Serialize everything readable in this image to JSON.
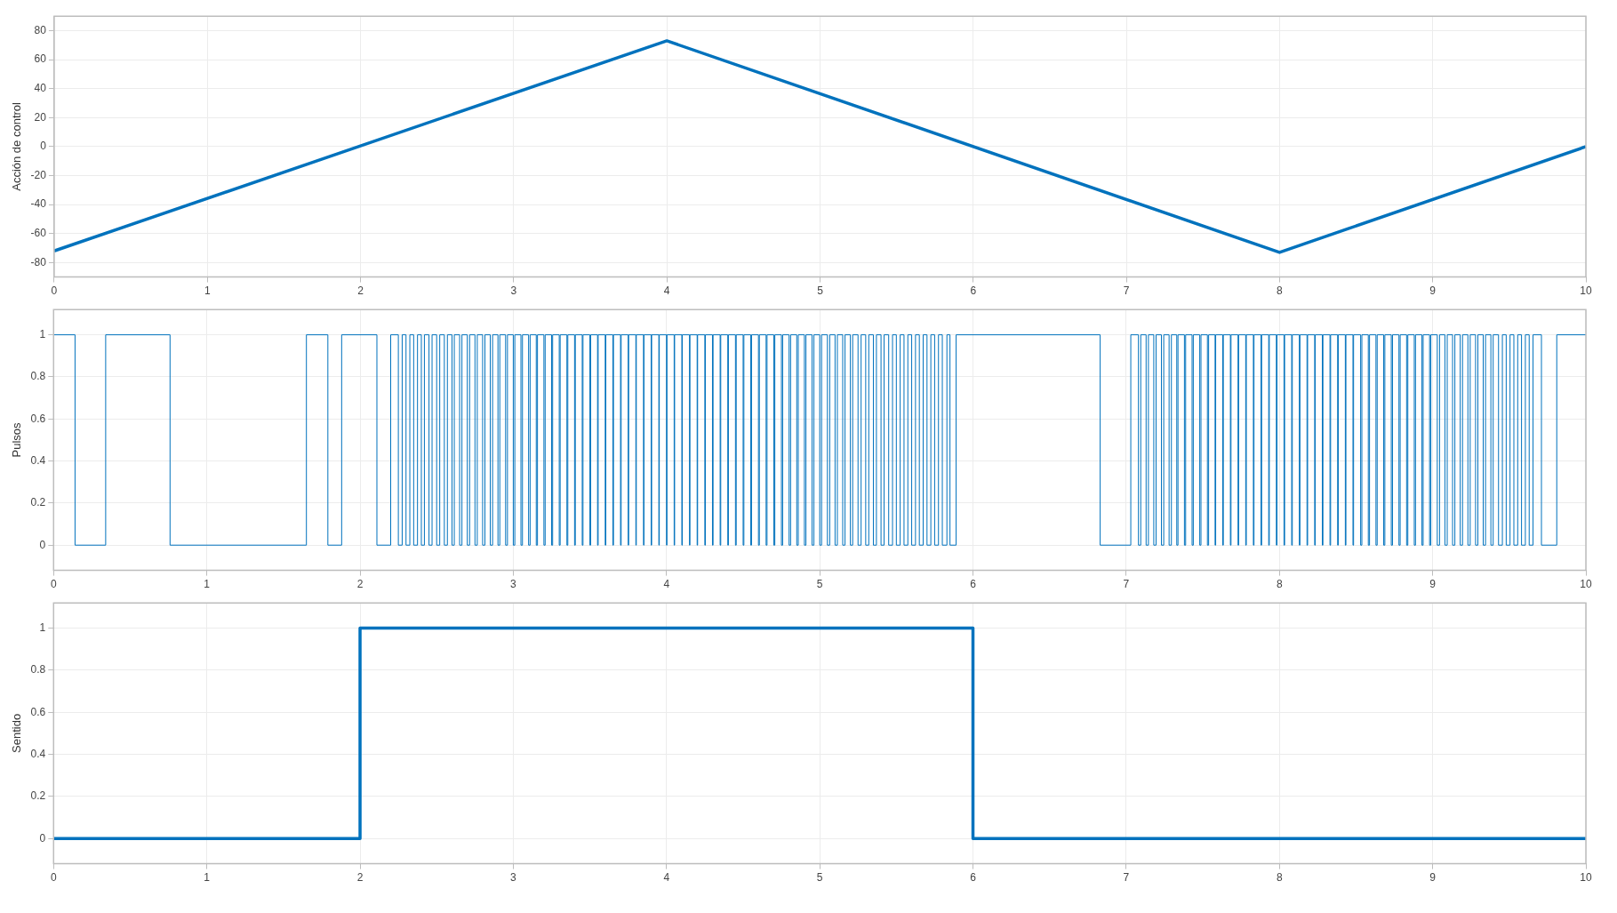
{
  "chart_data": [
    {
      "type": "line",
      "ylabel": "Acción de control",
      "x": [
        0,
        4,
        8,
        10
      ],
      "values": [
        -72,
        73,
        -73,
        0
      ],
      "color": "#0072bd",
      "xlim": [
        0,
        10
      ],
      "xticks": [
        0,
        1,
        2,
        3,
        4,
        5,
        6,
        7,
        8,
        9,
        10
      ],
      "ylim": [
        -90,
        90
      ],
      "yticks": [
        -80,
        -60,
        -40,
        -20,
        0,
        20,
        40,
        60,
        80
      ],
      "grid": true,
      "legend": false
    },
    {
      "type": "step",
      "ylabel": "Pulsos",
      "color": "#0072bd",
      "xlim": [
        0,
        10
      ],
      "xticks": [
        0,
        1,
        2,
        3,
        4,
        5,
        6,
        7,
        8,
        9,
        10
      ],
      "ylim": [
        -0.12,
        1.12
      ],
      "yticks": [
        0,
        0.2,
        0.4,
        0.6,
        0.8,
        1
      ],
      "grid": true,
      "legend": false,
      "x": [
        0,
        0.14,
        0.34,
        0.76,
        1.65,
        1.79,
        1.88,
        2.11,
        2.2,
        2.25,
        2.275,
        2.3,
        2.325,
        2.35,
        2.375,
        2.4,
        2.42,
        2.45,
        2.47,
        2.5,
        2.52,
        2.55,
        2.57,
        2.6,
        2.615,
        2.65,
        2.665,
        2.7,
        2.715,
        2.75,
        2.765,
        2.8,
        2.815,
        2.85,
        2.865,
        2.9,
        2.912,
        2.95,
        2.962,
        3,
        3.01,
        3.05,
        3.06,
        3.1,
        3.11,
        3.15,
        3.158,
        3.2,
        3.208,
        3.25,
        3.257,
        3.3,
        3.306,
        3.35,
        3.356,
        3.4,
        3.405,
        3.45,
        3.455,
        3.5,
        3.505,
        3.55,
        3.554,
        3.6,
        3.604,
        3.65,
        3.654,
        3.7,
        3.704,
        3.75,
        3.753,
        3.8,
        3.803,
        3.85,
        3.853,
        3.9,
        3.903,
        3.95,
        3.953,
        4,
        4.003,
        4.05,
        4.053,
        4.1,
        4.103,
        4.15,
        4.153,
        4.2,
        4.203,
        4.25,
        4.254,
        4.3,
        4.304,
        4.35,
        4.354,
        4.4,
        4.404,
        4.45,
        4.455,
        4.5,
        4.505,
        4.55,
        4.555,
        4.6,
        4.606,
        4.65,
        4.656,
        4.7,
        4.707,
        4.75,
        4.758,
        4.8,
        4.81,
        4.85,
        4.86,
        4.9,
        4.91,
        4.95,
        4.962,
        5,
        5.012,
        5.05,
        5.065,
        5.1,
        5.115,
        5.15,
        5.165,
        5.2,
        5.215,
        5.25,
        5.27,
        5.3,
        5.32,
        5.35,
        5.37,
        5.4,
        5.42,
        5.45,
        5.475,
        5.5,
        5.525,
        5.55,
        5.575,
        5.6,
        5.625,
        5.65,
        5.675,
        5.7,
        5.725,
        5.75,
        5.775,
        5.8,
        5.83,
        5.85,
        5.89,
        6.83,
        7.03,
        7.08,
        7.095,
        7.13,
        7.145,
        7.18,
        7.195,
        7.23,
        7.245,
        7.28,
        7.295,
        7.33,
        7.338,
        7.38,
        7.388,
        7.43,
        7.438,
        7.48,
        7.488,
        7.53,
        7.538,
        7.58,
        7.584,
        7.63,
        7.634,
        7.68,
        7.684,
        7.73,
        7.734,
        7.78,
        7.784,
        7.83,
        7.834,
        7.88,
        7.884,
        7.93,
        7.934,
        7.98,
        7.984,
        8.03,
        8.034,
        8.08,
        8.084,
        8.13,
        8.134,
        8.18,
        8.184,
        8.23,
        8.234,
        8.28,
        8.284,
        8.33,
        8.334,
        8.38,
        8.384,
        8.43,
        8.434,
        8.48,
        8.484,
        8.53,
        8.538,
        8.58,
        8.588,
        8.63,
        8.638,
        8.68,
        8.688,
        8.73,
        8.738,
        8.78,
        8.788,
        8.83,
        8.838,
        8.88,
        8.888,
        8.93,
        8.938,
        8.98,
        8.988,
        9.03,
        9.045,
        9.08,
        9.095,
        9.13,
        9.145,
        9.18,
        9.195,
        9.23,
        9.245,
        9.28,
        9.295,
        9.33,
        9.345,
        9.38,
        9.395,
        9.43,
        9.455,
        9.48,
        9.505,
        9.53,
        9.555,
        9.58,
        9.605,
        9.63,
        9.655,
        9.71,
        9.81,
        10
      ],
      "values": [
        1,
        0,
        1,
        0,
        1,
        0,
        1,
        0,
        1,
        0,
        1,
        0,
        1,
        0,
        1,
        0,
        1,
        0,
        1,
        0,
        1,
        0,
        1,
        0,
        1,
        0,
        1,
        0,
        1,
        0,
        1,
        0,
        1,
        0,
        1,
        0,
        1,
        0,
        1,
        0,
        1,
        0,
        1,
        0,
        1,
        0,
        1,
        0,
        1,
        0,
        1,
        0,
        1,
        0,
        1,
        0,
        1,
        0,
        1,
        0,
        1,
        0,
        1,
        0,
        1,
        0,
        1,
        0,
        1,
        0,
        1,
        0,
        1,
        0,
        1,
        0,
        1,
        0,
        1,
        0,
        1,
        0,
        1,
        0,
        1,
        0,
        1,
        0,
        1,
        0,
        1,
        0,
        1,
        0,
        1,
        0,
        1,
        0,
        1,
        0,
        1,
        0,
        1,
        0,
        1,
        0,
        1,
        0,
        1,
        0,
        1,
        0,
        1,
        0,
        1,
        0,
        1,
        0,
        1,
        0,
        1,
        0,
        1,
        0,
        1,
        0,
        1,
        0,
        1,
        0,
        1,
        0,
        1,
        0,
        1,
        0,
        1,
        0,
        1,
        0,
        1,
        0,
        1,
        0,
        1,
        0,
        1,
        0,
        1,
        0,
        1,
        0,
        1,
        0,
        1,
        0,
        1,
        0,
        1,
        0,
        1,
        0,
        1,
        0,
        1,
        0,
        1,
        0,
        1,
        0,
        1,
        0,
        1,
        0,
        1,
        0,
        1,
        0,
        1,
        0,
        1,
        0,
        1,
        0,
        1,
        0,
        1,
        0,
        1,
        0,
        1,
        0,
        1,
        0,
        1,
        0,
        1,
        0,
        1,
        0,
        1,
        0,
        1,
        0,
        1,
        0,
        1,
        0,
        1,
        0,
        1,
        0,
        1,
        0,
        1,
        0,
        1,
        0,
        1,
        0,
        1,
        0,
        1,
        0,
        1,
        0,
        1,
        0,
        1,
        0,
        1,
        0,
        1,
        0,
        1,
        0,
        1,
        0,
        1,
        0,
        1,
        0,
        1,
        0,
        1,
        0,
        1,
        0,
        1,
        0,
        1,
        0,
        1,
        0,
        1,
        0,
        1,
        0,
        1,
        0,
        1,
        0,
        1,
        1
      ]
    },
    {
      "type": "step",
      "ylabel": "Sentido",
      "x": [
        0,
        2,
        6,
        10
      ],
      "values": [
        0,
        1,
        0,
        0
      ],
      "color": "#0072bd",
      "xlim": [
        0,
        10
      ],
      "xticks": [
        0,
        1,
        2,
        3,
        4,
        5,
        6,
        7,
        8,
        9,
        10
      ],
      "ylim": [
        -0.12,
        1.12
      ],
      "yticks": [
        0,
        0.2,
        0.4,
        0.6,
        0.8,
        1
      ],
      "grid": true,
      "legend": false
    }
  ]
}
